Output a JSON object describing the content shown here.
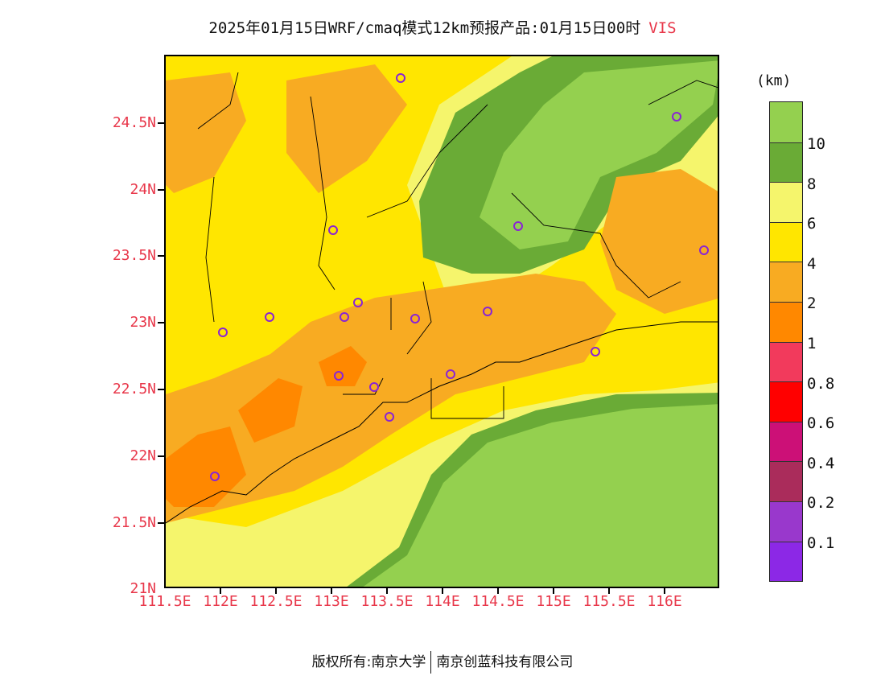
{
  "header": {
    "title": "2025年01月15日WRF/cmaq模式12km预报产品:01月15日00时",
    "variable": "VIS"
  },
  "axes": {
    "y_labels": [
      "24.5N",
      "24N",
      "23.5N",
      "23N",
      "22.5N",
      "22N",
      "21.5N",
      "21N"
    ],
    "x_labels": [
      "111.5E",
      "112E",
      "112.5E",
      "113E",
      "113.5E",
      "114E",
      "114.5E",
      "115E",
      "115.5E",
      "116E"
    ]
  },
  "colorbar": {
    "unit": "(km)",
    "colors": [
      "#94d04f",
      "#6aab36",
      "#f5f56c",
      "#ffe600",
      "#f8ab22",
      "#ff8800",
      "#f23a5c",
      "#ff0000",
      "#cc1077",
      "#aa2c5b",
      "#9938cc",
      "#8c28e6"
    ],
    "tick_labels": [
      "10",
      "8",
      "6",
      "4",
      "2",
      "1",
      "0.8",
      "0.6",
      "0.4",
      "0.2",
      "0.1"
    ]
  },
  "footer": {
    "left": "版权所有:南京大学",
    "right": "南京创蓝科技有限公司"
  }
}
